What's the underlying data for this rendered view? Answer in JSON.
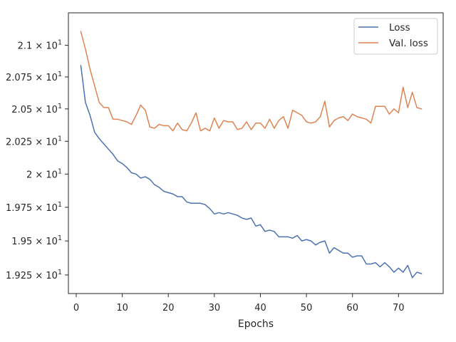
{
  "chart_data": {
    "type": "line",
    "title": "",
    "xlabel": "Epochs",
    "ylabel": "",
    "xlim": [
      -1.7,
      79.7
    ],
    "ylim": [
      19.115,
      21.26
    ],
    "x_ticks": [
      0,
      10,
      20,
      30,
      40,
      50,
      60,
      70
    ],
    "x_tick_labels": [
      "0",
      "10",
      "20",
      "30",
      "40",
      "50",
      "60",
      "70"
    ],
    "y_ticks": [
      19.25,
      19.5,
      19.75,
      20.0,
      20.25,
      20.5,
      20.75,
      21.0
    ],
    "y_tick_labels": [
      {
        "mantissa": "1.925",
        "base": "10",
        "exp": "1"
      },
      {
        "mantissa": "1.95",
        "base": "10",
        "exp": "1"
      },
      {
        "mantissa": "1.975",
        "base": "10",
        "exp": "1"
      },
      {
        "mantissa": "2",
        "base": "10",
        "exp": "1"
      },
      {
        "mantissa": "2.025",
        "base": "10",
        "exp": "1"
      },
      {
        "mantissa": "2.05",
        "base": "10",
        "exp": "1"
      },
      {
        "mantissa": "2.075",
        "base": "10",
        "exp": "1"
      },
      {
        "mantissa": "2.1",
        "base": "10",
        "exp": "1"
      }
    ],
    "y_scale": "log",
    "grid": false,
    "legend_position": "top-right",
    "x": [
      1,
      2,
      3,
      4,
      5,
      6,
      7,
      8,
      9,
      10,
      11,
      12,
      13,
      14,
      15,
      16,
      17,
      18,
      19,
      20,
      21,
      22,
      23,
      24,
      25,
      26,
      27,
      28,
      29,
      30,
      31,
      32,
      33,
      34,
      35,
      36,
      37,
      38,
      39,
      40,
      41,
      42,
      43,
      44,
      45,
      46,
      47,
      48,
      49,
      50,
      51,
      52,
      53,
      54,
      55,
      56,
      57,
      58,
      59,
      60,
      61,
      62,
      63,
      64,
      65,
      66,
      67,
      68,
      69,
      70,
      71,
      72,
      73,
      74,
      75
    ],
    "series": [
      {
        "name": "Loss",
        "color": "#4c72b0",
        "values": [
          20.84,
          20.55,
          20.45,
          20.32,
          20.27,
          20.23,
          20.19,
          20.15,
          20.1,
          20.08,
          20.05,
          20.01,
          20.0,
          19.97,
          19.98,
          19.96,
          19.92,
          19.9,
          19.87,
          19.86,
          19.85,
          19.83,
          19.83,
          19.79,
          19.78,
          19.78,
          19.78,
          19.77,
          19.74,
          19.7,
          19.71,
          19.7,
          19.71,
          19.7,
          19.69,
          19.67,
          19.66,
          19.67,
          19.61,
          19.62,
          19.57,
          19.58,
          19.57,
          19.53,
          19.53,
          19.53,
          19.52,
          19.54,
          19.5,
          19.51,
          19.5,
          19.47,
          19.49,
          19.5,
          19.41,
          19.45,
          19.43,
          19.41,
          19.41,
          19.38,
          19.39,
          19.39,
          19.33,
          19.33,
          19.34,
          19.31,
          19.34,
          19.31,
          19.27,
          19.3,
          19.27,
          19.32,
          19.23,
          19.27,
          19.26
        ]
      },
      {
        "name": "Val. loss",
        "color": "#dd8452",
        "values": [
          21.11,
          20.97,
          20.81,
          20.68,
          20.55,
          20.51,
          20.51,
          20.42,
          20.42,
          20.41,
          20.4,
          20.38,
          20.45,
          20.53,
          20.49,
          20.36,
          20.35,
          20.38,
          20.37,
          20.37,
          20.33,
          20.39,
          20.34,
          20.33,
          20.39,
          20.47,
          20.33,
          20.35,
          20.33,
          20.43,
          20.35,
          20.41,
          20.4,
          20.4,
          20.34,
          20.35,
          20.4,
          20.34,
          20.39,
          20.39,
          20.35,
          20.42,
          20.35,
          20.41,
          20.44,
          20.35,
          20.49,
          20.47,
          20.45,
          20.4,
          20.39,
          20.4,
          20.44,
          20.56,
          20.36,
          20.41,
          20.43,
          20.44,
          20.41,
          20.46,
          20.44,
          20.43,
          20.42,
          20.39,
          20.52,
          20.52,
          20.52,
          20.46,
          20.5,
          20.47,
          20.67,
          20.51,
          20.63,
          20.51,
          20.5
        ]
      }
    ]
  }
}
